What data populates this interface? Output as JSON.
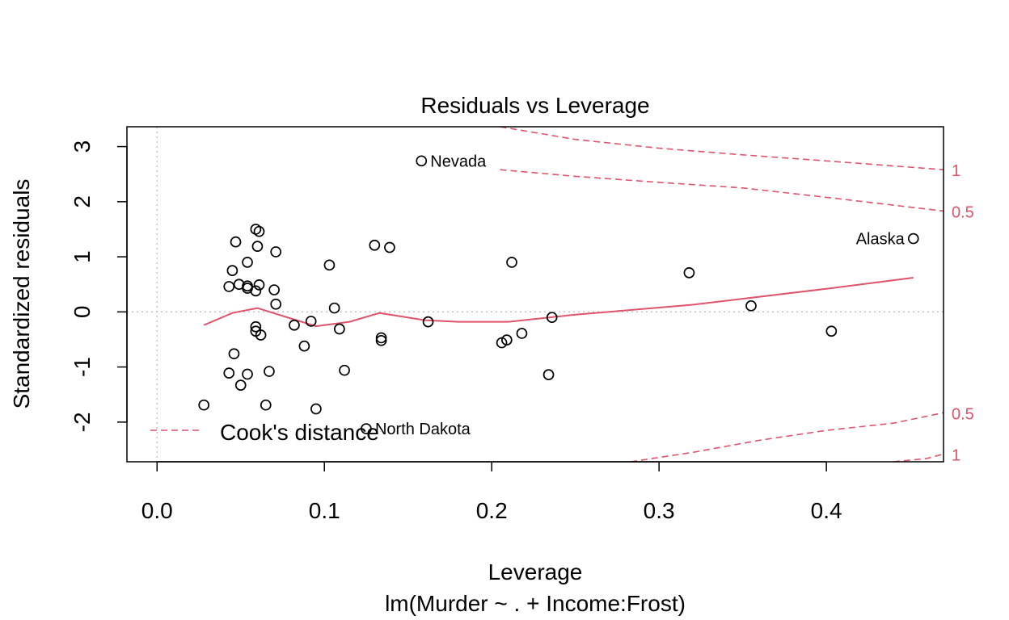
{
  "chart_data": {
    "type": "scatter",
    "title": "Residuals vs Leverage",
    "xlabel": "Leverage",
    "subtitle": "lm(Murder ~ . + Income:Frost)",
    "ylabel": "Standardized residuals",
    "xlim": [
      -0.018,
      0.47
    ],
    "ylim": [
      -2.72,
      3.36
    ],
    "x_ticks": [
      0.0,
      0.1,
      0.2,
      0.3,
      0.4
    ],
    "x_tick_labels": [
      "0.0",
      "0.1",
      "0.2",
      "0.3",
      "0.4"
    ],
    "y_ticks": [
      -2,
      -1,
      0,
      1,
      2,
      3
    ],
    "y_tick_labels": [
      "-2",
      "-1",
      "0",
      "1",
      "2",
      "3"
    ],
    "colors": {
      "points": "#000000",
      "smooth": "#DF536B",
      "cook": "#DF536B",
      "refline": "#BEBEBE"
    },
    "points": [
      {
        "x": 0.028,
        "y": -1.69
      },
      {
        "x": 0.043,
        "y": -1.11
      },
      {
        "x": 0.043,
        "y": 0.46
      },
      {
        "x": 0.045,
        "y": 0.75
      },
      {
        "x": 0.046,
        "y": -0.76
      },
      {
        "x": 0.047,
        "y": 1.27
      },
      {
        "x": 0.049,
        "y": 0.5
      },
      {
        "x": 0.05,
        "y": -1.33
      },
      {
        "x": 0.054,
        "y": 0.47
      },
      {
        "x": 0.054,
        "y": 0.43
      },
      {
        "x": 0.054,
        "y": 0.9
      },
      {
        "x": 0.054,
        "y": -1.13
      },
      {
        "x": 0.059,
        "y": 0.38
      },
      {
        "x": 0.059,
        "y": -0.27
      },
      {
        "x": 0.059,
        "y": -0.35
      },
      {
        "x": 0.059,
        "y": 1.5
      },
      {
        "x": 0.06,
        "y": 1.19
      },
      {
        "x": 0.061,
        "y": 1.46
      },
      {
        "x": 0.061,
        "y": 0.49
      },
      {
        "x": 0.062,
        "y": -0.42
      },
      {
        "x": 0.065,
        "y": -1.69
      },
      {
        "x": 0.067,
        "y": -1.08
      },
      {
        "x": 0.07,
        "y": 0.4
      },
      {
        "x": 0.071,
        "y": 0.14
      },
      {
        "x": 0.071,
        "y": 1.09
      },
      {
        "x": 0.082,
        "y": -0.24
      },
      {
        "x": 0.088,
        "y": -0.62
      },
      {
        "x": 0.092,
        "y": -0.17
      },
      {
        "x": 0.095,
        "y": -1.76
      },
      {
        "x": 0.103,
        "y": 0.85
      },
      {
        "x": 0.106,
        "y": 0.07
      },
      {
        "x": 0.109,
        "y": -0.31
      },
      {
        "x": 0.112,
        "y": -1.06
      },
      {
        "x": 0.125,
        "y": -2.12
      },
      {
        "x": 0.13,
        "y": 1.21
      },
      {
        "x": 0.134,
        "y": -0.47
      },
      {
        "x": 0.134,
        "y": -0.52
      },
      {
        "x": 0.139,
        "y": 1.17
      },
      {
        "x": 0.158,
        "y": 2.74
      },
      {
        "x": 0.162,
        "y": -0.18
      },
      {
        "x": 0.206,
        "y": -0.56
      },
      {
        "x": 0.209,
        "y": -0.51
      },
      {
        "x": 0.212,
        "y": 0.9
      },
      {
        "x": 0.218,
        "y": -0.39
      },
      {
        "x": 0.234,
        "y": -1.14
      },
      {
        "x": 0.236,
        "y": -0.1
      },
      {
        "x": 0.318,
        "y": 0.71
      },
      {
        "x": 0.355,
        "y": 0.11
      },
      {
        "x": 0.403,
        "y": -0.35
      },
      {
        "x": 0.452,
        "y": 1.33
      }
    ],
    "point_labels": [
      {
        "text": "Nevada",
        "x": 0.158,
        "y": 2.74,
        "side": "right"
      },
      {
        "text": "Alaska",
        "x": 0.452,
        "y": 1.33,
        "side": "left"
      },
      {
        "text": "North Dakota",
        "x": 0.125,
        "y": -2.12,
        "side": "right"
      }
    ],
    "smooth_line": [
      {
        "x": 0.028,
        "y": -0.24
      },
      {
        "x": 0.045,
        "y": -0.02
      },
      {
        "x": 0.06,
        "y": 0.07
      },
      {
        "x": 0.08,
        "y": -0.12
      },
      {
        "x": 0.095,
        "y": -0.26
      },
      {
        "x": 0.115,
        "y": -0.18
      },
      {
        "x": 0.133,
        "y": -0.02
      },
      {
        "x": 0.16,
        "y": -0.15
      },
      {
        "x": 0.18,
        "y": -0.18
      },
      {
        "x": 0.21,
        "y": -0.18
      },
      {
        "x": 0.25,
        "y": -0.05
      },
      {
        "x": 0.32,
        "y": 0.13
      },
      {
        "x": 0.4,
        "y": 0.42
      },
      {
        "x": 0.452,
        "y": 0.62
      }
    ],
    "cook_contours": [
      {
        "level": 1,
        "sign": 1,
        "points": [
          {
            "x": 0.205,
            "y": 3.36
          },
          {
            "x": 0.25,
            "y": 3.13
          },
          {
            "x": 0.3,
            "y": 2.97
          },
          {
            "x": 0.35,
            "y": 2.85
          },
          {
            "x": 0.4,
            "y": 2.74
          },
          {
            "x": 0.47,
            "y": 2.58
          }
        ]
      },
      {
        "level": 0.5,
        "sign": 1,
        "points": [
          {
            "x": 0.205,
            "y": 2.58
          },
          {
            "x": 0.25,
            "y": 2.46
          },
          {
            "x": 0.3,
            "y": 2.35
          },
          {
            "x": 0.35,
            "y": 2.25
          },
          {
            "x": 0.4,
            "y": 2.08
          },
          {
            "x": 0.47,
            "y": 1.83
          }
        ]
      },
      {
        "level": 0.5,
        "sign": -1,
        "points": [
          {
            "x": 0.283,
            "y": -2.72
          },
          {
            "x": 0.32,
            "y": -2.55
          },
          {
            "x": 0.36,
            "y": -2.33
          },
          {
            "x": 0.4,
            "y": -2.15
          },
          {
            "x": 0.44,
            "y": -2.02
          },
          {
            "x": 0.47,
            "y": -1.83
          }
        ]
      },
      {
        "level": 1,
        "sign": -1,
        "points": [
          {
            "x": 0.44,
            "y": -2.72
          },
          {
            "x": 0.46,
            "y": -2.66
          },
          {
            "x": 0.47,
            "y": -2.58
          }
        ]
      }
    ],
    "cook_margin_labels": [
      {
        "text": "1",
        "y": 2.58
      },
      {
        "text": "0.5",
        "y": 1.83
      },
      {
        "text": "0.5",
        "y": -1.83
      },
      {
        "text": "1",
        "y": -2.58
      }
    ],
    "legend": {
      "text": "Cook's distance",
      "position": "bottom-left"
    }
  }
}
